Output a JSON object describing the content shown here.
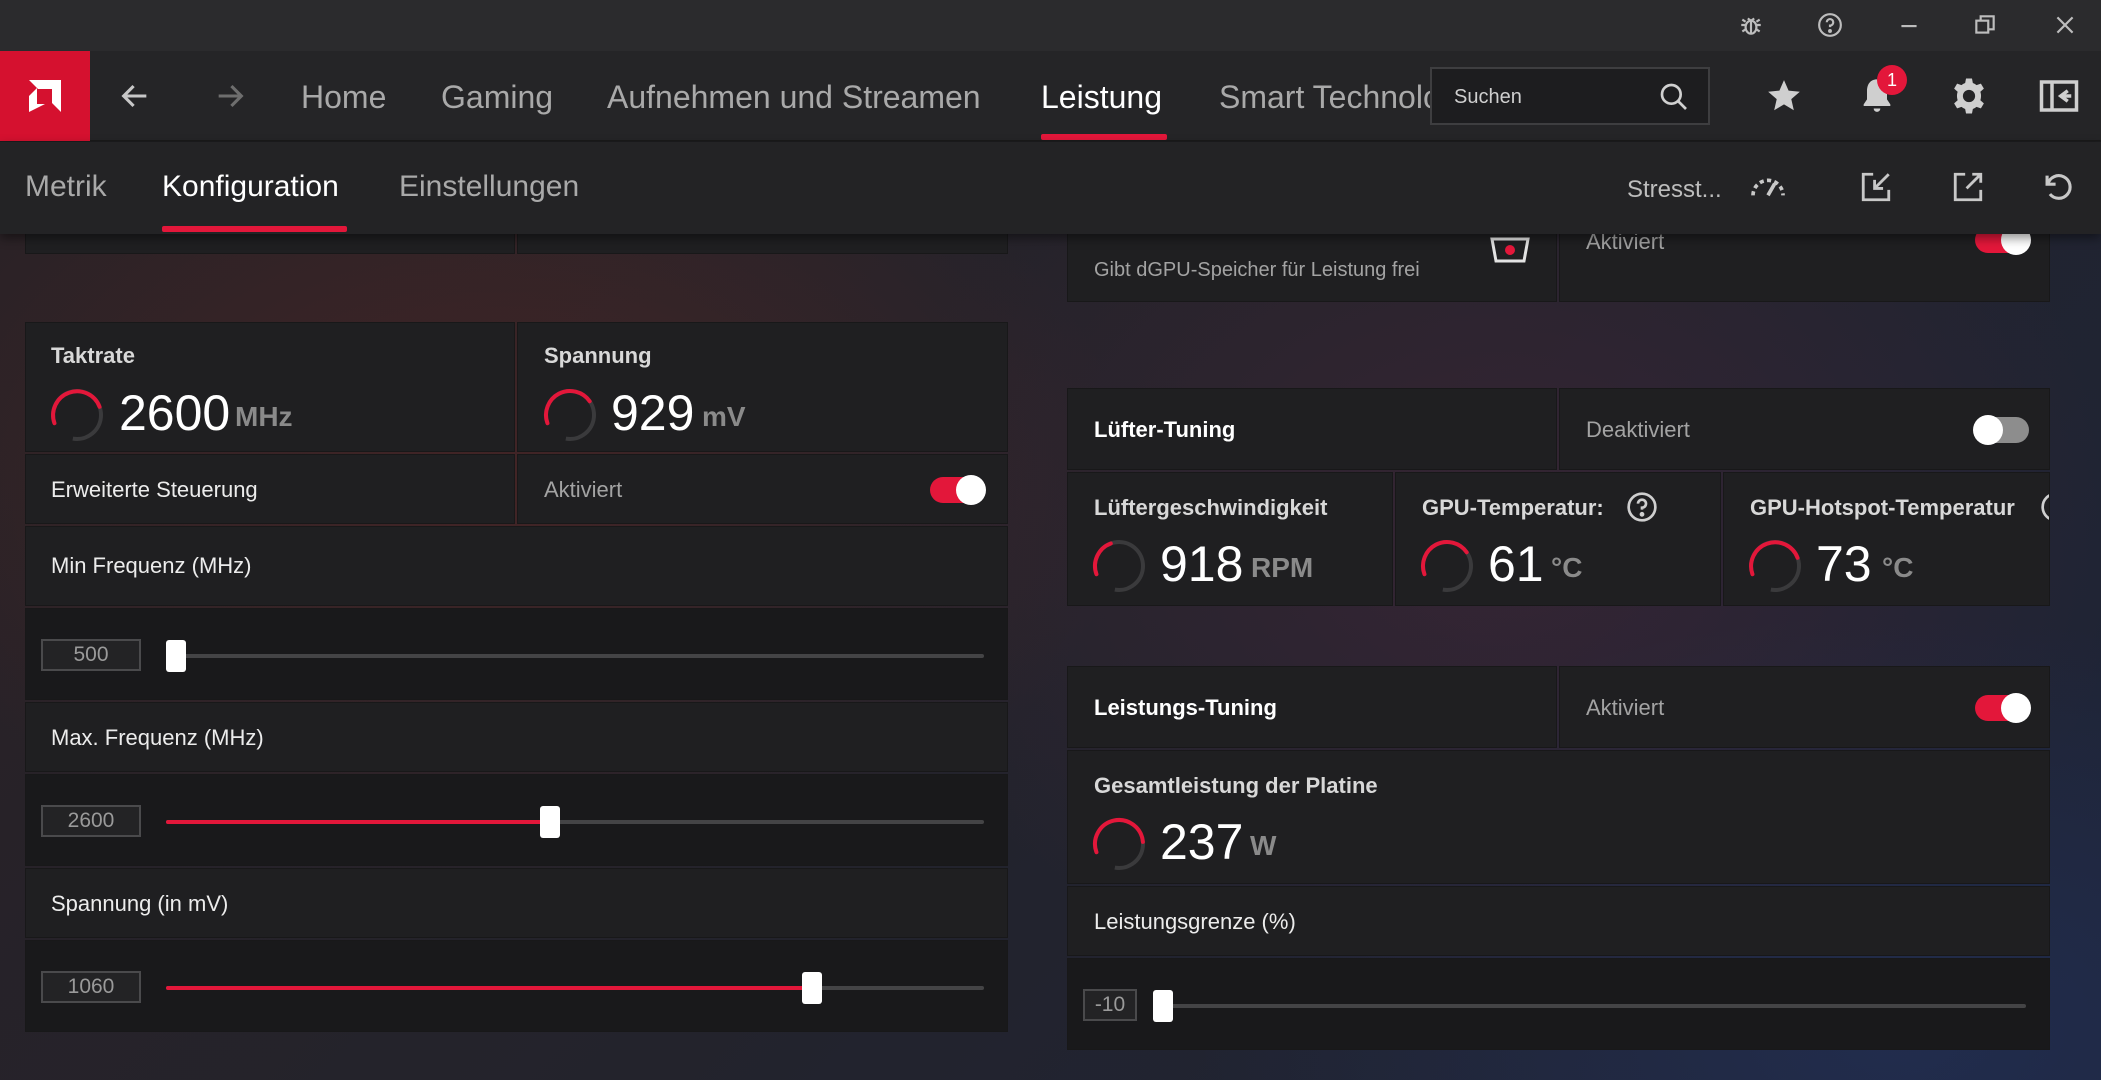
{
  "colors": {
    "accent": "#E3173A",
    "brand": "#D5112F"
  },
  "titlebar": {
    "icons": [
      "bug-icon",
      "help-icon",
      "minimize-icon",
      "restore-icon",
      "close-icon"
    ]
  },
  "nav": {
    "tabs": [
      "Home",
      "Gaming",
      "Aufnehmen und Streamen",
      "Leistung",
      "Smart Technologies"
    ],
    "active_tab": "Leistung",
    "search_placeholder": "Suchen",
    "notification_count": "1"
  },
  "subnav": {
    "tabs": [
      "Metrik",
      "Konfiguration",
      "Einstellungen"
    ],
    "active_tab": "Konfiguration",
    "stress_label": "Stresst..."
  },
  "left": {
    "clock": {
      "label": "Taktrate",
      "value": "2600",
      "unit": "MHz",
      "gauge_level": 0.6
    },
    "voltage": {
      "label": "Spannung",
      "value": "929",
      "unit": "mV",
      "gauge_level": 0.55
    },
    "advanced": {
      "label": "Erweiterte Steuerung",
      "state": "Aktiviert",
      "on": true
    },
    "min_freq": {
      "label": "Min Frequenz (MHz)",
      "value": "500",
      "level": 0.0
    },
    "max_freq": {
      "label": "Max. Frequenz (MHz)",
      "value": "2600",
      "level": 0.47
    },
    "voltage_slider": {
      "label": "Spannung (in mV)",
      "value": "1060",
      "level": 0.79
    }
  },
  "right": {
    "memory": {
      "description": "Gibt dGPU-Speicher für Leistung frei",
      "state": "Aktiviert"
    },
    "fan_tuning": {
      "label": "Lüfter-Tuning",
      "state": "Deaktiviert",
      "on": false
    },
    "fan_speed": {
      "label": "Lüftergeschwindigkeit",
      "value": "918",
      "unit": "RPM",
      "gauge_level": 0.3
    },
    "gpu_temp": {
      "label": "GPU-Temperatur:",
      "value": "61",
      "unit": "°C",
      "gauge_level": 0.55
    },
    "hotspot_temp": {
      "label": "GPU-Hotspot-Temperatur",
      "value": "73",
      "unit": "°C",
      "gauge_level": 0.6
    },
    "power_tuning": {
      "label": "Leistungs-Tuning",
      "state": "Aktiviert",
      "on": true
    },
    "board_power": {
      "label": "Gesamtleistung der Platine",
      "value": "237",
      "unit": "W",
      "gauge_level": 0.65
    },
    "power_limit": {
      "label": "Leistungsgrenze (%)",
      "value": "-10",
      "level": 0.0
    }
  }
}
